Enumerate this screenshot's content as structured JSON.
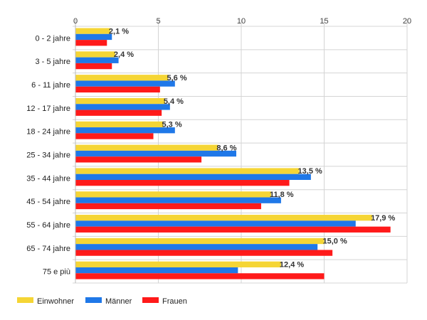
{
  "chart_data": {
    "type": "bar",
    "orientation": "horizontal",
    "categories": [
      "0 - 2 jahre",
      "3 - 5 jahre",
      "6 - 11 jahre",
      "12 - 17 jahre",
      "18 - 24 jahre",
      "25 - 34 jahre",
      "35 - 44 jahre",
      "45 - 54 jahre",
      "55 - 64 jahre",
      "65 - 74 jahre",
      "75 e più"
    ],
    "series": [
      {
        "name": "Einwohner",
        "color": "#f5d535",
        "values": [
          2.1,
          2.4,
          5.6,
          5.4,
          5.3,
          8.6,
          13.5,
          11.8,
          17.9,
          15.0,
          12.4
        ]
      },
      {
        "name": "Männer",
        "color": "#1f78e8",
        "values": [
          2.2,
          2.6,
          6.0,
          5.7,
          6.0,
          9.7,
          14.2,
          12.4,
          16.9,
          14.6,
          9.8
        ]
      },
      {
        "name": "Frauen",
        "color": "#ff1a1a",
        "values": [
          1.9,
          2.2,
          5.1,
          5.2,
          4.7,
          7.6,
          12.9,
          11.2,
          19.0,
          15.5,
          15.0
        ]
      }
    ],
    "data_labels": [
      "2,1 %",
      "2,4 %",
      "5,6 %",
      "5,4 %",
      "5,3 %",
      "8,6 %",
      "13,5 %",
      "11,8 %",
      "17,9 %",
      "15,0 %",
      "12,4 %"
    ],
    "x_ticks": [
      "0",
      "5",
      "10",
      "15",
      "20"
    ],
    "xlim": [
      0,
      20
    ],
    "grid": true,
    "axis_position": "top",
    "legend_position": "bottom-left",
    "title": "",
    "xlabel": "",
    "ylabel": ""
  }
}
